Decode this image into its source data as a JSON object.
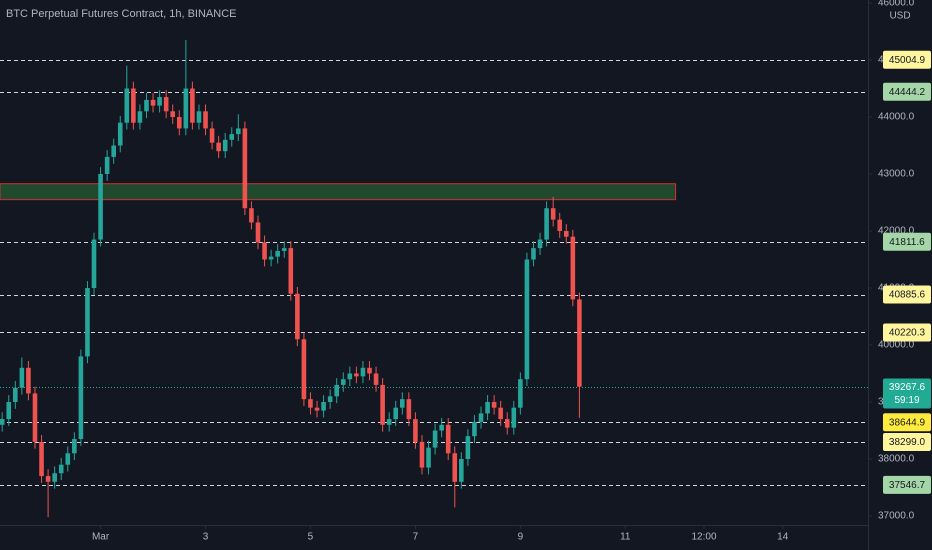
{
  "chart_data": {
    "type": "candlestick",
    "title": "BTC Perpetual Futures Contract, 1h, BINANCE",
    "currency": "USD",
    "up_color": "#26a69a",
    "down_color": "#ef5350",
    "grid": false,
    "xlim": [
      -46,
      351
    ],
    "ylim": [
      36842,
      46053
    ],
    "xticks": [
      {
        "value": 0,
        "label": "Mar"
      },
      {
        "value": 48,
        "label": "3"
      },
      {
        "value": 96,
        "label": "5"
      },
      {
        "value": 144,
        "label": "7"
      },
      {
        "value": 192,
        "label": "9"
      },
      {
        "value": 240,
        "label": "11"
      },
      {
        "value": 276,
        "label": "12:00"
      },
      {
        "value": 312,
        "label": "14"
      }
    ],
    "yticks": [
      {
        "value": 37000,
        "label": "37000.0"
      },
      {
        "value": 38000,
        "label": "38000.0"
      },
      {
        "value": 39000,
        "label": "39000.0"
      },
      {
        "value": 40000,
        "label": "40000.0"
      },
      {
        "value": 41000,
        "label": "41000.0"
      },
      {
        "value": 42000,
        "label": "42000.0"
      },
      {
        "value": 43000,
        "label": "43000.0"
      },
      {
        "value": 44000,
        "label": "44000.0"
      },
      {
        "value": 45000,
        "label": "45000.0"
      },
      {
        "value": 46000,
        "label": "46000.0"
      }
    ],
    "x": [
      -45,
      -42,
      -39,
      -36,
      -33,
      -30,
      -27,
      -24,
      -21,
      -18,
      -15,
      -12,
      -9,
      -6,
      -3,
      0,
      3,
      6,
      9,
      12,
      15,
      18,
      21,
      24,
      27,
      30,
      33,
      36,
      39,
      42,
      45,
      48,
      51,
      54,
      57,
      60,
      63,
      66,
      69,
      72,
      75,
      78,
      81,
      84,
      87,
      90,
      93,
      96,
      99,
      102,
      105,
      108,
      111,
      114,
      117,
      120,
      123,
      126,
      129,
      132,
      135,
      138,
      141,
      144,
      147,
      150,
      153,
      156,
      159,
      162,
      165,
      168,
      171,
      174,
      177,
      180,
      183,
      186,
      189,
      192,
      195,
      198,
      201,
      204,
      207,
      210,
      213,
      216,
      219
    ],
    "open": [
      38600,
      38700,
      39000,
      39250,
      39600,
      39150,
      38300,
      37700,
      37600,
      37750,
      37900,
      38100,
      38350,
      39800,
      41000,
      41850,
      43000,
      43300,
      43500,
      43900,
      44500,
      43900,
      44100,
      44300,
      44200,
      44350,
      44100,
      44000,
      43800,
      44500,
      43900,
      44100,
      43800,
      43550,
      43400,
      43600,
      43700,
      43800,
      42400,
      42150,
      41800,
      41500,
      41550,
      41650,
      41700,
      40900,
      40100,
      39050,
      38900,
      38850,
      39000,
      39100,
      39300,
      39400,
      39500,
      39450,
      39600,
      39500,
      39300,
      38600,
      38700,
      38900,
      39050,
      38700,
      38300,
      37850,
      38200,
      38500,
      38600,
      38100,
      37600,
      38000,
      38400,
      38650,
      38800,
      39000,
      38900,
      38700,
      38550,
      38900,
      39400,
      41500,
      41700,
      41850,
      42400,
      42200,
      42000,
      41900,
      40800
    ],
    "high": [
      38820,
      39120,
      39370,
      39780,
      39720,
      39270,
      38420,
      37820,
      37870,
      38020,
      38220,
      38470,
      39920,
      41120,
      41970,
      43120,
      43420,
      43620,
      44020,
      44900,
      44620,
      44220,
      44420,
      44420,
      44470,
      44470,
      44220,
      44120,
      45350,
      44620,
      44220,
      44220,
      43920,
      43670,
      43720,
      43820,
      44050,
      43920,
      42520,
      42270,
      41920,
      41670,
      41770,
      41820,
      41820,
      41020,
      40220,
      39170,
      39020,
      39120,
      39220,
      39420,
      39520,
      39620,
      39620,
      39720,
      39720,
      39620,
      39420,
      38820,
      39020,
      39170,
      39170,
      38820,
      38420,
      38320,
      38620,
      38720,
      38720,
      38220,
      38120,
      38520,
      38770,
      38920,
      39120,
      39120,
      39020,
      38820,
      39020,
      39520,
      41620,
      41820,
      41970,
      42520,
      42600,
      42320,
      42120,
      42020,
      40920
    ],
    "low": [
      38480,
      38580,
      38880,
      39130,
      39030,
      38180,
      37580,
      36980,
      37480,
      37630,
      37780,
      37980,
      38230,
      39680,
      40880,
      41730,
      42880,
      43180,
      43380,
      43780,
      43780,
      43780,
      43980,
      44080,
      44080,
      43980,
      43880,
      43680,
      43680,
      43780,
      43780,
      43680,
      43430,
      43280,
      43280,
      43480,
      43580,
      42280,
      42030,
      41680,
      41380,
      41380,
      41430,
      41530,
      40780,
      39980,
      38930,
      38780,
      38730,
      38730,
      38880,
      38980,
      39180,
      39280,
      39330,
      39330,
      39380,
      39180,
      38480,
      38480,
      38580,
      38780,
      38580,
      38180,
      37730,
      37730,
      38080,
      38380,
      37980,
      37150,
      37480,
      37880,
      38280,
      38530,
      38680,
      38780,
      38580,
      38430,
      38430,
      38780,
      39280,
      41380,
      41580,
      41730,
      42080,
      41880,
      41780,
      40680,
      38720
    ],
    "close": [
      38700,
      39000,
      39250,
      39600,
      39150,
      38300,
      37700,
      37600,
      37750,
      37900,
      38100,
      38350,
      39800,
      41000,
      41850,
      43000,
      43300,
      43500,
      43900,
      44500,
      43900,
      44100,
      44300,
      44200,
      44350,
      44100,
      44000,
      43800,
      44500,
      43900,
      44100,
      43800,
      43550,
      43400,
      43600,
      43700,
      43800,
      42400,
      42150,
      41800,
      41500,
      41550,
      41650,
      41700,
      40900,
      40100,
      39050,
      38900,
      38850,
      39000,
      39100,
      39300,
      39400,
      39500,
      39450,
      39600,
      39500,
      39300,
      38600,
      38700,
      38900,
      39050,
      38700,
      38300,
      37850,
      38200,
      38500,
      38600,
      38100,
      37600,
      38000,
      38400,
      38650,
      38800,
      39000,
      38900,
      38700,
      38550,
      38900,
      39400,
      41500,
      41700,
      41850,
      42400,
      42200,
      42000,
      41900,
      40800,
      39268
    ],
    "zone": {
      "low": 42550,
      "high": 42830,
      "x_end": 263,
      "fill": "#1f4a2e",
      "border": "#d32f2f"
    },
    "price_lines": [
      {
        "value": 45004.9,
        "label": "45004.9",
        "color": "#fff59d"
      },
      {
        "value": 44444.2,
        "label": "44444.2",
        "color": "#a5d6a7"
      },
      {
        "value": 41811.6,
        "label": "41811.6",
        "color": "#a5d6a7"
      },
      {
        "value": 40885.6,
        "label": "40885.6",
        "color": "#fff59d"
      },
      {
        "value": 40220.3,
        "label": "40220.3",
        "color": "#fff59d"
      },
      {
        "value": 38644.9,
        "label": "38644.9",
        "color": "#ffeb3b"
      },
      {
        "value": 38299.0,
        "label": "38299.0",
        "color": "#fff59d"
      },
      {
        "value": 37546.7,
        "label": "37546.7",
        "color": "#a5d6a7"
      }
    ],
    "last_price": {
      "value": 39267.6,
      "label": "39267.6",
      "countdown": "59:19",
      "color": "#22ab94"
    }
  }
}
